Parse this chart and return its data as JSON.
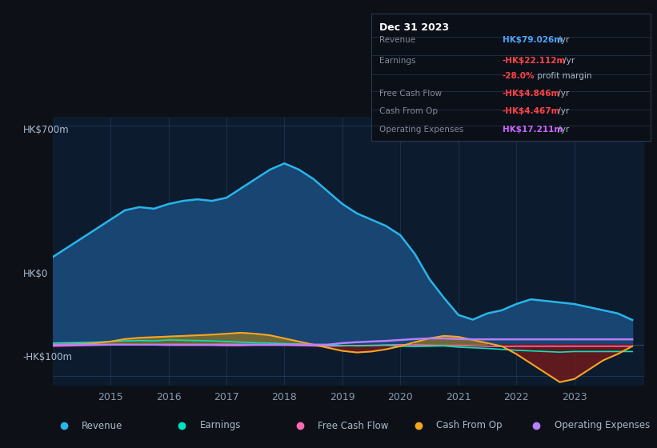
{
  "bg_color": "#0d1117",
  "plot_bg_color": "#0d1b2e",
  "grid_color": "#1e3a5f",
  "title_box": {
    "date": "Dec 31 2023",
    "rows": [
      {
        "label": "Revenue",
        "value": "HK$79.026m /yr",
        "value_color": "#4da6ff"
      },
      {
        "label": "Earnings",
        "value": "-HK$22.112m /yr",
        "value_color": "#ff4444"
      },
      {
        "label": "",
        "value": "-28.0% profit margin",
        "value_color": "#ff4444"
      },
      {
        "label": "Free Cash Flow",
        "value": "-HK$4.846m /yr",
        "value_color": "#ff4444"
      },
      {
        "label": "Cash From Op",
        "value": "-HK$4.467m /yr",
        "value_color": "#ff4444"
      },
      {
        "label": "Operating Expenses",
        "value": "HK$17.211m /yr",
        "value_color": "#cc66ff"
      }
    ]
  },
  "ylabel_top": "HK$700m",
  "ylabel_zero": "HK$0",
  "ylabel_bottom": "-HK$100m",
  "ylim": [
    -130,
    730
  ],
  "xlim": [
    2014.0,
    2024.2
  ],
  "xticks": [
    2015,
    2016,
    2017,
    2018,
    2019,
    2020,
    2021,
    2022,
    2023
  ],
  "legend": [
    {
      "label": "Revenue",
      "color": "#29b5e8"
    },
    {
      "label": "Earnings",
      "color": "#00e5c0"
    },
    {
      "label": "Free Cash Flow",
      "color": "#ff69b4"
    },
    {
      "label": "Cash From Op",
      "color": "#f5a623"
    },
    {
      "label": "Operating Expenses",
      "color": "#b87fff"
    }
  ],
  "series": {
    "x": [
      2014.0,
      2014.25,
      2014.5,
      2014.75,
      2015.0,
      2015.25,
      2015.5,
      2015.75,
      2016.0,
      2016.25,
      2016.5,
      2016.75,
      2017.0,
      2017.25,
      2017.5,
      2017.75,
      2018.0,
      2018.25,
      2018.5,
      2018.75,
      2019.0,
      2019.25,
      2019.5,
      2019.75,
      2020.0,
      2020.25,
      2020.5,
      2020.75,
      2021.0,
      2021.25,
      2021.5,
      2021.75,
      2022.0,
      2022.25,
      2022.5,
      2022.75,
      2023.0,
      2023.25,
      2023.5,
      2023.75,
      2024.0
    ],
    "revenue": [
      280,
      310,
      340,
      370,
      400,
      430,
      440,
      435,
      450,
      460,
      465,
      460,
      470,
      500,
      530,
      560,
      580,
      560,
      530,
      490,
      450,
      420,
      400,
      380,
      350,
      290,
      210,
      150,
      95,
      80,
      100,
      110,
      130,
      145,
      140,
      135,
      130,
      120,
      110,
      100,
      79
    ],
    "earnings": [
      5,
      6,
      7,
      8,
      10,
      12,
      13,
      12,
      15,
      14,
      13,
      12,
      10,
      8,
      6,
      5,
      3,
      2,
      0,
      -2,
      -3,
      -4,
      -3,
      -2,
      -5,
      -6,
      -5,
      -4,
      -8,
      -10,
      -12,
      -15,
      -18,
      -20,
      -22,
      -24,
      -22,
      -22,
      -22,
      -22,
      -22
    ],
    "free_cash_flow": [
      -5,
      -4,
      -3,
      -2,
      -1,
      -1,
      -1,
      -1,
      -2,
      -2,
      -2,
      -2,
      -3,
      -3,
      -2,
      -2,
      -2,
      -3,
      -4,
      -5,
      -4,
      -3,
      -2,
      -1,
      0,
      -1,
      -2,
      -3,
      -3,
      -4,
      -5,
      -6,
      -5,
      -5,
      -5,
      -5,
      -5,
      -5,
      -5,
      -5,
      -5
    ],
    "cash_from_op": [
      0,
      1,
      2,
      5,
      10,
      18,
      22,
      24,
      26,
      28,
      30,
      32,
      35,
      38,
      35,
      30,
      20,
      10,
      0,
      -10,
      -20,
      -25,
      -22,
      -15,
      -5,
      8,
      20,
      28,
      25,
      15,
      5,
      -5,
      -30,
      -60,
      -90,
      -120,
      -110,
      -80,
      -50,
      -30,
      -5
    ],
    "operating_expenses": [
      0,
      0,
      0,
      0,
      0,
      0,
      0,
      0,
      0,
      0,
      0,
      0,
      0,
      0,
      0,
      0,
      0,
      0,
      0,
      0,
      5,
      8,
      10,
      12,
      15,
      18,
      20,
      20,
      18,
      17,
      17,
      17,
      17,
      17,
      17,
      17,
      17,
      17,
      17,
      17,
      17
    ]
  }
}
